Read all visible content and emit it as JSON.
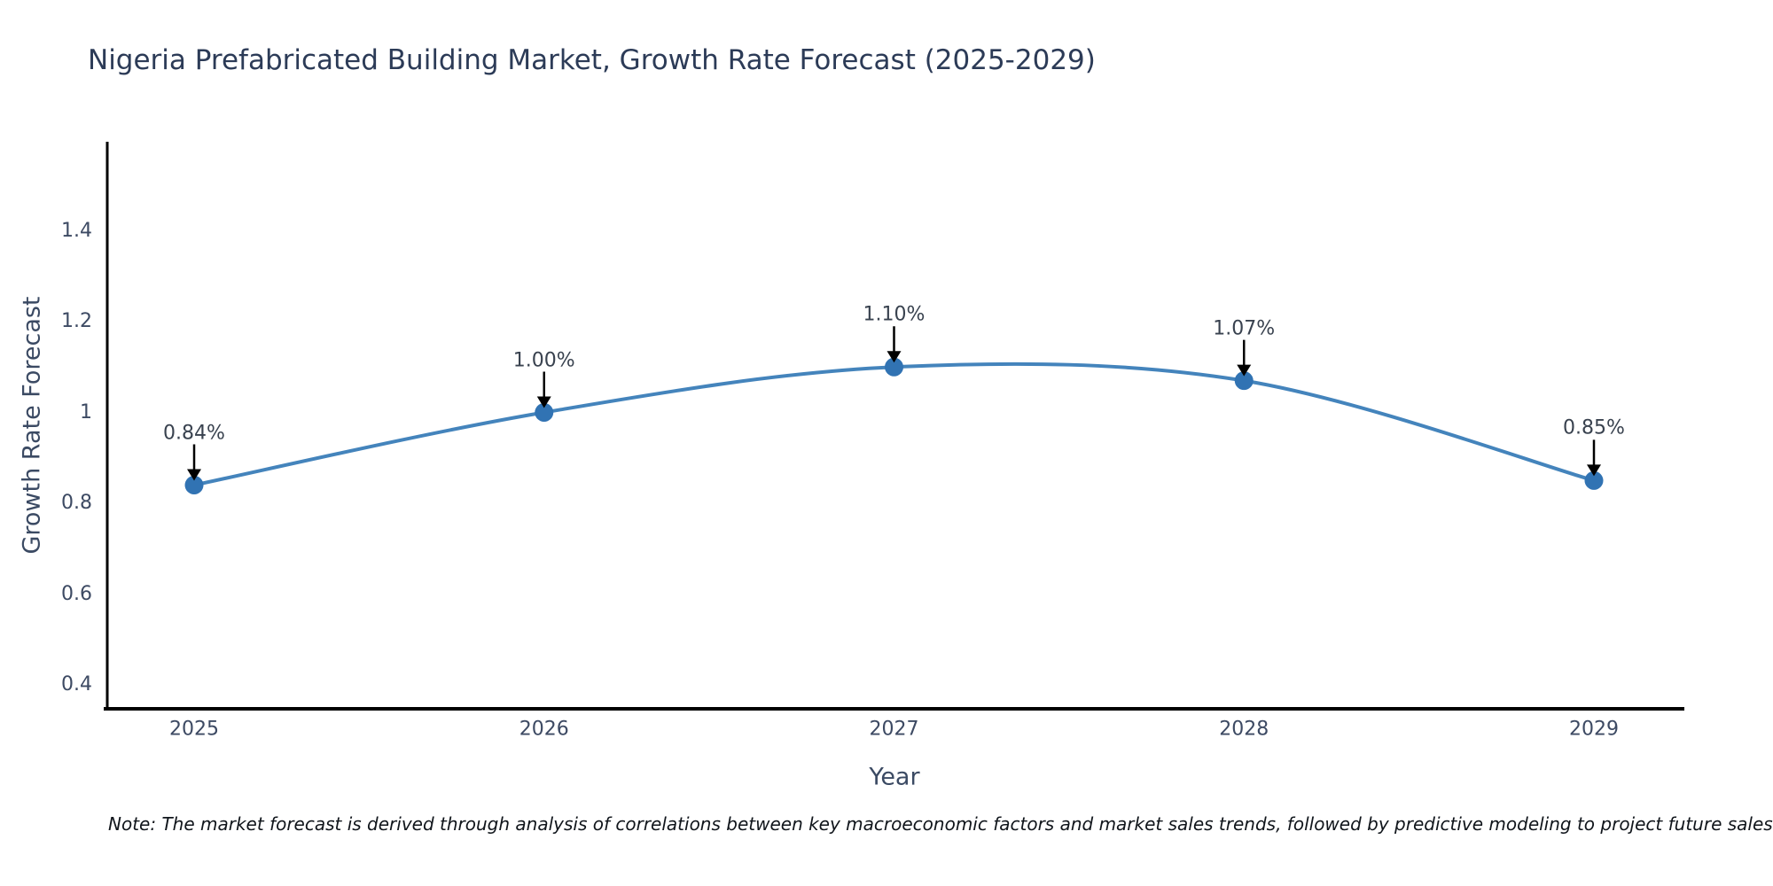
{
  "title": "Nigeria Prefabricated Building Market, Growth Rate Forecast (2025-2029)",
  "note": "Note: The market forecast is derived through analysis of correlations between key macroeconomic factors and market sales trends, followed by predictive modeling to project future sales",
  "colors": {
    "title_text": "#2c3b57",
    "axis_text": "#3d4a63",
    "annotation_text": "#39424f",
    "note_text": "#10151b",
    "axis_line": "#000000",
    "arrow": "#000000",
    "line": "#4484bc",
    "marker": "#3173b3"
  },
  "chart_data": {
    "type": "line",
    "title": "Nigeria Prefabricated Building Market, Growth Rate Forecast (2025-2029)",
    "xlabel": "Year",
    "ylabel": "Growth Rate Forecast",
    "x": [
      2025,
      2026,
      2027,
      2028,
      2029
    ],
    "values": [
      0.84,
      1.0,
      1.1,
      1.07,
      0.85
    ],
    "point_labels": [
      "0.84%",
      "1.00%",
      "1.10%",
      "1.07%",
      "0.85%"
    ],
    "x_tick_labels": [
      "2025",
      "2026",
      "2027",
      "2028",
      "2029"
    ],
    "y_ticks": [
      0.4,
      0.6,
      0.8,
      1.0,
      1.2,
      1.4
    ],
    "y_tick_labels": [
      "0.4",
      "0.6",
      "0.8",
      "1",
      "1.2",
      "1.4"
    ],
    "ylim": [
      0.35,
      1.6
    ],
    "line_shape": "spline",
    "grid": false,
    "legend": "none",
    "annotations": "value labels with black arrows pointing at each data point"
  }
}
